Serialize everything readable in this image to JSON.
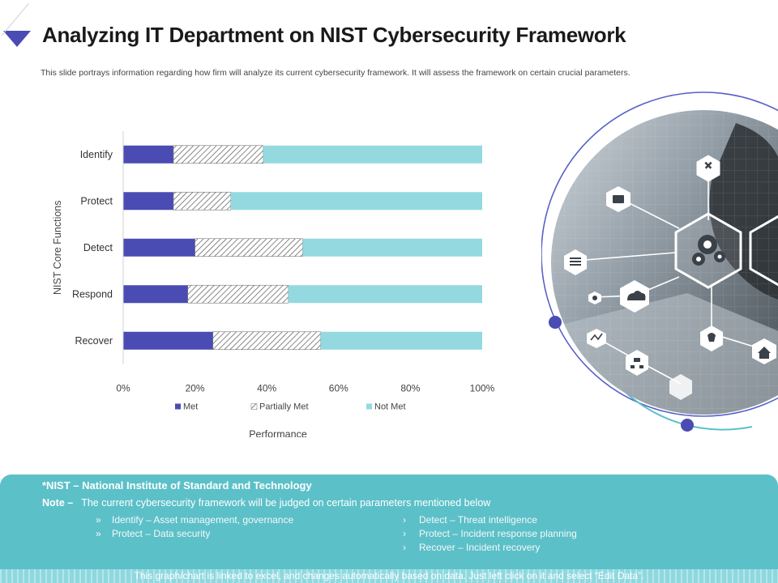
{
  "header": {
    "title": "Analyzing IT Department on NIST Cybersecurity Framework",
    "subtitle": "This slide portrays information regarding how firm will analyze its current cybersecurity framework. It will assess the framework on certain crucial parameters."
  },
  "chart_data": {
    "type": "bar",
    "orientation": "horizontal",
    "stacked": true,
    "categories": [
      "Identify",
      "Protect",
      "Detect",
      "Respond",
      "Recover"
    ],
    "series": [
      {
        "name": "Met",
        "values": [
          14,
          14,
          20,
          18,
          25
        ],
        "color": "#4a4cb3",
        "pattern": "solid"
      },
      {
        "name": "Partially Met",
        "values": [
          25,
          16,
          30,
          28,
          30
        ],
        "color": "#555555",
        "pattern": "diagonal-hatch"
      },
      {
        "name": "Not Met",
        "values": [
          61,
          70,
          50,
          54,
          45
        ],
        "color": "#93d9df",
        "pattern": "solid"
      }
    ],
    "x_ticks": [
      "0%",
      "20%",
      "40%",
      "60%",
      "80%",
      "100%"
    ],
    "xlim": [
      0,
      100
    ],
    "xlabel": "Performance",
    "ylabel": "NIST Core Functions",
    "legend_position": "bottom",
    "grid": false
  },
  "footer": {
    "footnote": "*NIST – National Institute of Standard and Technology",
    "note_label": "Note –",
    "note_text": "The current cybersecurity framework will be judged on certain parameters mentioned below",
    "left_bullets": [
      "Identify – Asset management, governance",
      "Protect – Data security"
    ],
    "right_bullets": [
      "Detect – Threat intelligence",
      "Protect – Incident response planning",
      "Recover – Incident recovery"
    ],
    "left_marker": "»",
    "right_marker": "›",
    "disclaimer": "This graph/chart is linked to excel, and changes automatically based on data. Just left click on it and select “Edit Data”."
  },
  "colors": {
    "accent": "#4a4cb3",
    "teal": "#5cc0c8",
    "light_teal": "#93d9df"
  },
  "visual": {
    "icons": [
      "tools-icon",
      "monitor-icon",
      "gears-icon",
      "document-icon",
      "cloud-icon",
      "lightbulb-icon",
      "chart-icon",
      "network-icon",
      "home-icon",
      "analytics-icon"
    ]
  }
}
